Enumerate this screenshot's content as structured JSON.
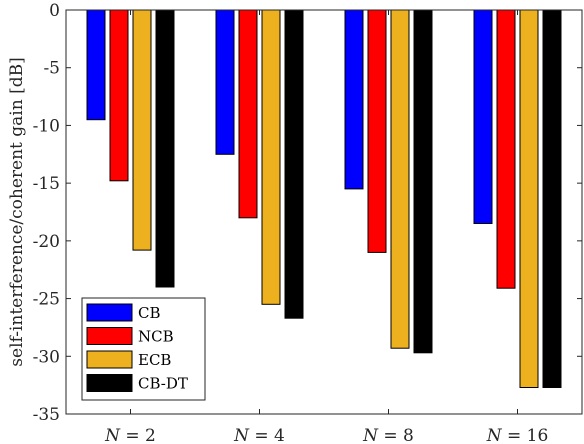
{
  "chart_data": {
    "type": "bar",
    "title": "",
    "xlabel": "",
    "ylabel": "self-interference/coherent gain [dB]",
    "categories": [
      {
        "var": "N",
        "eq": " = ",
        "num": "2"
      },
      {
        "var": "N",
        "eq": " = ",
        "num": "4"
      },
      {
        "var": "N",
        "eq": " = ",
        "num": "8"
      },
      {
        "var": "N",
        "eq": " = ",
        "num": "16"
      }
    ],
    "ylim": [
      -35,
      0
    ],
    "yticks": [
      0,
      -5,
      -10,
      -15,
      -20,
      -25,
      -30,
      -35
    ],
    "grid": false,
    "legend_position": "bottom-left",
    "series": [
      {
        "name": "CB",
        "color": "#0000ff",
        "values": [
          -9.5,
          -12.5,
          -15.5,
          -18.5
        ]
      },
      {
        "name": "NCB",
        "color": "#ff0000",
        "values": [
          -14.8,
          -18.0,
          -21.0,
          -24.1
        ]
      },
      {
        "name": "ECB",
        "color": "#edb120",
        "values": [
          -20.8,
          -25.5,
          -29.3,
          -32.7
        ]
      },
      {
        "name": "CB-DT",
        "color": "#000000",
        "values": [
          -24.0,
          -26.7,
          -29.7,
          -32.7
        ]
      }
    ]
  }
}
